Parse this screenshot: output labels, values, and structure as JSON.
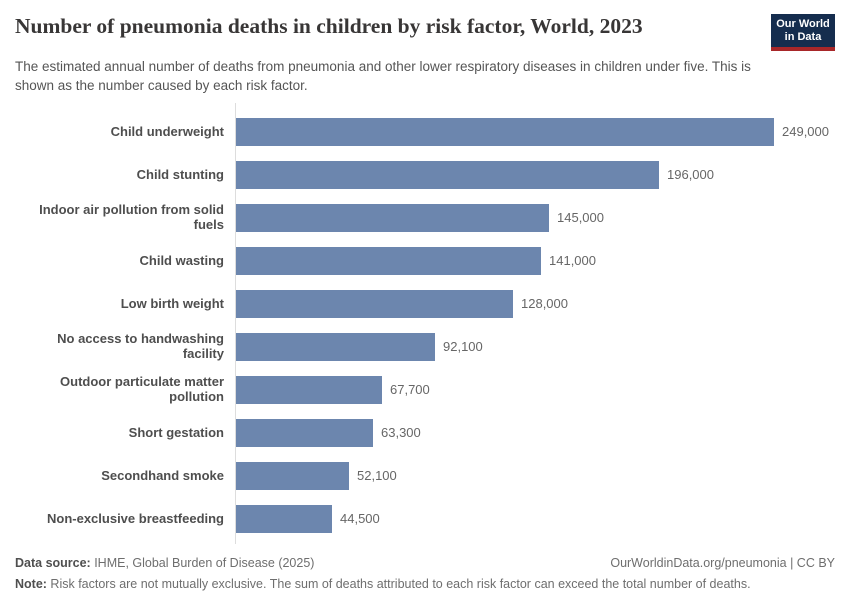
{
  "header": {
    "title": "Number of pneumonia deaths in children by risk factor, World, 2023",
    "subtitle": "The estimated annual number of deaths from pneumonia and other lower respiratory diseases in children under five. This is shown as the number caused by each risk factor.",
    "logo": {
      "line1": "Our World",
      "line2": "in Data",
      "bg_color": "#152d4e",
      "accent_color": "#a82729"
    }
  },
  "chart_data": {
    "type": "bar",
    "orientation": "horizontal",
    "title": "Number of pneumonia deaths in children by risk factor, World, 2023",
    "categories": [
      "Child underweight",
      "Child stunting",
      "Indoor air pollution from solid fuels",
      "Child wasting",
      "Low birth weight",
      "No access to handwashing facility",
      "Outdoor particulate matter pollution",
      "Short gestation",
      "Secondhand smoke",
      "Non-exclusive breastfeeding"
    ],
    "values": [
      249000,
      196000,
      145000,
      141000,
      128000,
      92100,
      67700,
      63300,
      52100,
      44500
    ],
    "value_labels": [
      "249,000",
      "196,000",
      "145,000",
      "141,000",
      "128,000",
      "92,100",
      "67,700",
      "63,300",
      "52,100",
      "44,500"
    ],
    "bar_color": "#6c86ae",
    "axis_line_color": "#dddddd",
    "xlabel": "",
    "ylabel": "",
    "xlim": [
      0,
      249000
    ],
    "grid": "off",
    "legend": "none"
  },
  "footer": {
    "datasource_label": "Data source:",
    "datasource_text": " IHME, Global Burden of Disease (2025)",
    "attribution": "OurWorldinData.org/pneumonia | CC BY",
    "note_label": "Note:",
    "note_text": " Risk factors are not mutually exclusive. The sum of deaths attributed to each risk factor can exceed the total number of deaths."
  }
}
